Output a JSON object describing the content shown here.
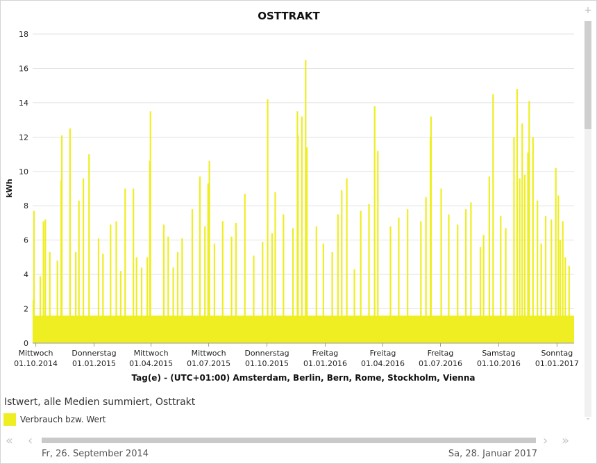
{
  "chart_data": {
    "type": "bar",
    "title": "OSTTRAKT",
    "xlabel": "Tag(e) - (UTC+01:00) Amsterdam, Berlin, Bern, Rome, Stockholm, Vienna",
    "ylabel": "kWh",
    "ylim": [
      0,
      18
    ],
    "yticks": [
      0,
      2,
      4,
      6,
      8,
      10,
      12,
      14,
      16,
      18
    ],
    "grid": true,
    "x_range": [
      "2014-09-26",
      "2017-01-28"
    ],
    "xticks": [
      {
        "date": "2014-10-01",
        "day": "Mittwoch",
        "label": "01.10.2014"
      },
      {
        "date": "2015-01-01",
        "day": "Donnerstag",
        "label": "01.01.2015"
      },
      {
        "date": "2015-04-01",
        "day": "Mittwoch",
        "label": "01.04.2015"
      },
      {
        "date": "2015-07-01",
        "day": "Mittwoch",
        "label": "01.07.2015"
      },
      {
        "date": "2015-10-01",
        "day": "Donnerstag",
        "label": "01.10.2015"
      },
      {
        "date": "2016-01-01",
        "day": "Freitag",
        "label": "01.01.2016"
      },
      {
        "date": "2016-04-01",
        "day": "Freitag",
        "label": "01.04.2016"
      },
      {
        "date": "2016-07-01",
        "day": "Freitag",
        "label": "01.07.2016"
      },
      {
        "date": "2016-10-01",
        "day": "Samstag",
        "label": "01.10.2016"
      },
      {
        "date": "2017-01-01",
        "day": "Sonntag",
        "label": "01.01.2017"
      }
    ],
    "color": "#eeee22",
    "series": [
      {
        "name": "Verbrauch bzw. Wert",
        "points": [
          [
            "2014-09-27",
            2.5
          ],
          [
            "2014-09-28",
            7.7
          ],
          [
            "2014-10-08",
            3.9
          ],
          [
            "2014-10-13",
            7.1
          ],
          [
            "2014-10-16",
            7.2
          ],
          [
            "2014-10-23",
            5.3
          ],
          [
            "2014-11-04",
            4.8
          ],
          [
            "2014-11-10",
            9.5
          ],
          [
            "2014-11-11",
            12.1
          ],
          [
            "2014-11-24",
            12.5
          ],
          [
            "2014-12-03",
            5.3
          ],
          [
            "2014-12-08",
            8.3
          ],
          [
            "2014-12-15",
            9.6
          ],
          [
            "2014-12-24",
            11.0
          ],
          [
            "2015-01-08",
            6.1
          ],
          [
            "2015-01-15",
            5.2
          ],
          [
            "2015-01-27",
            6.9
          ],
          [
            "2015-02-05",
            7.1
          ],
          [
            "2015-02-12",
            4.2
          ],
          [
            "2015-02-19",
            9.0
          ],
          [
            "2015-03-04",
            9.0
          ],
          [
            "2015-03-09",
            5.0
          ],
          [
            "2015-03-17",
            4.4
          ],
          [
            "2015-03-26",
            5.0
          ],
          [
            "2015-03-30",
            10.6
          ],
          [
            "2015-03-31",
            13.5
          ],
          [
            "2015-04-21",
            6.9
          ],
          [
            "2015-04-28",
            6.2
          ],
          [
            "2015-05-06",
            4.4
          ],
          [
            "2015-05-13",
            5.3
          ],
          [
            "2015-05-20",
            6.1
          ],
          [
            "2015-06-05",
            7.8
          ],
          [
            "2015-06-17",
            9.7
          ],
          [
            "2015-06-25",
            6.8
          ],
          [
            "2015-06-30",
            9.3
          ],
          [
            "2015-07-02",
            10.6
          ],
          [
            "2015-07-10",
            5.8
          ],
          [
            "2015-07-23",
            7.1
          ],
          [
            "2015-08-06",
            6.2
          ],
          [
            "2015-08-13",
            7.0
          ],
          [
            "2015-08-27",
            8.7
          ],
          [
            "2015-09-10",
            5.1
          ],
          [
            "2015-09-24",
            5.9
          ],
          [
            "2015-10-02",
            14.2
          ],
          [
            "2015-10-09",
            6.4
          ],
          [
            "2015-10-14",
            8.8
          ],
          [
            "2015-10-27",
            7.5
          ],
          [
            "2015-11-11",
            6.7
          ],
          [
            "2015-11-18",
            13.5
          ],
          [
            "2015-11-19",
            12.1
          ],
          [
            "2015-11-25",
            13.2
          ],
          [
            "2015-12-01",
            16.5
          ],
          [
            "2015-12-03",
            11.4
          ],
          [
            "2015-12-18",
            6.8
          ],
          [
            "2015-12-29",
            5.8
          ],
          [
            "2016-01-12",
            5.3
          ],
          [
            "2016-01-21",
            7.5
          ],
          [
            "2016-01-27",
            8.9
          ],
          [
            "2016-02-04",
            9.6
          ],
          [
            "2016-02-16",
            4.3
          ],
          [
            "2016-02-26",
            7.7
          ],
          [
            "2016-03-10",
            8.1
          ],
          [
            "2016-03-19",
            13.8
          ],
          [
            "2016-03-24",
            11.2
          ],
          [
            "2016-04-13",
            6.8
          ],
          [
            "2016-04-26",
            7.3
          ],
          [
            "2016-05-10",
            7.8
          ],
          [
            "2016-05-31",
            7.1
          ],
          [
            "2016-06-08",
            8.5
          ],
          [
            "2016-06-15",
            12.0
          ],
          [
            "2016-06-16",
            13.2
          ],
          [
            "2016-07-02",
            9.0
          ],
          [
            "2016-07-14",
            7.5
          ],
          [
            "2016-07-28",
            6.9
          ],
          [
            "2016-08-10",
            7.8
          ],
          [
            "2016-08-18",
            8.2
          ],
          [
            "2016-09-02",
            5.6
          ],
          [
            "2016-09-07",
            6.3
          ],
          [
            "2016-09-16",
            9.7
          ],
          [
            "2016-09-22",
            14.5
          ],
          [
            "2016-10-04",
            7.4
          ],
          [
            "2016-10-12",
            6.7
          ],
          [
            "2016-10-25",
            12.0
          ],
          [
            "2016-10-30",
            14.8
          ],
          [
            "2016-11-03",
            9.6
          ],
          [
            "2016-11-07",
            12.8
          ],
          [
            "2016-11-11",
            9.8
          ],
          [
            "2016-11-16",
            11.1
          ],
          [
            "2016-11-18",
            14.1
          ],
          [
            "2016-11-24",
            12.0
          ],
          [
            "2016-12-01",
            8.3
          ],
          [
            "2016-12-07",
            5.8
          ],
          [
            "2016-12-14",
            7.4
          ],
          [
            "2016-12-23",
            7.2
          ],
          [
            "2016-12-30",
            10.2
          ],
          [
            "2017-01-03",
            8.6
          ],
          [
            "2017-01-06",
            6.0
          ],
          [
            "2017-01-10",
            7.1
          ],
          [
            "2017-01-14",
            5.0
          ],
          [
            "2017-01-20",
            4.5
          ]
        ]
      }
    ]
  },
  "series_caption": "Istwert, alle Medien summiert, Osttrakt",
  "legend": {
    "label": "Verbrauch bzw. Wert"
  },
  "range": {
    "start": "Fr, 26. September 2014",
    "end": "Sa, 28. Januar 2017"
  },
  "icons": {
    "zoom_in": "+",
    "zoom_out": "-",
    "first": "«",
    "prev": "‹",
    "next": "›",
    "last": "»"
  }
}
